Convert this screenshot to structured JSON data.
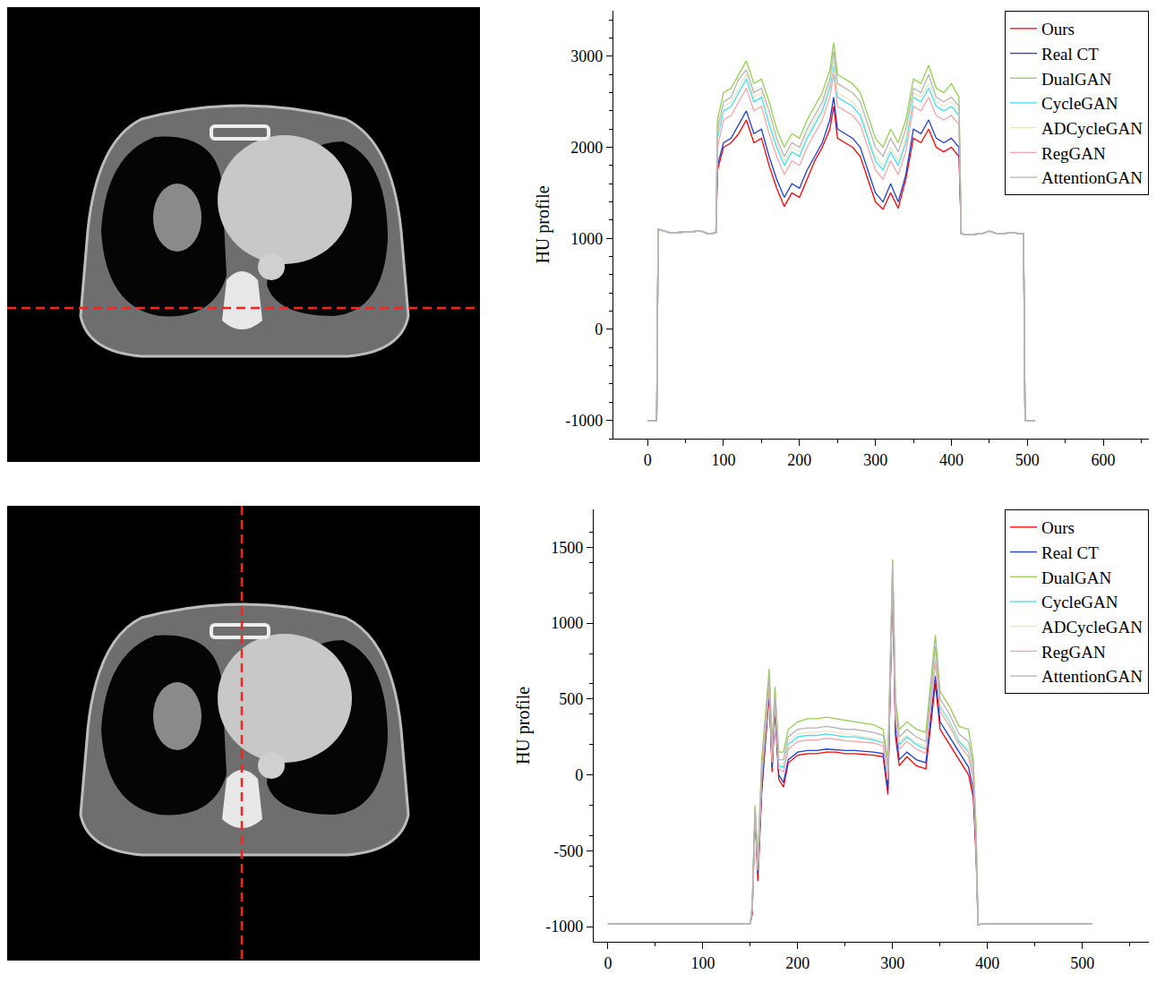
{
  "chart_data": [
    {
      "type": "line",
      "y_label": "HU profile",
      "legend": "upper right",
      "grid": false,
      "xlim": [
        -45,
        660
      ],
      "ylim": [
        -1200,
        3500
      ],
      "xticks": [
        0,
        100,
        200,
        300,
        400,
        500,
        600
      ],
      "yticks": [
        -1000,
        0,
        1000,
        2000,
        3000
      ],
      "x": [
        0,
        12,
        14,
        30,
        50,
        70,
        80,
        90,
        92,
        100,
        110,
        120,
        130,
        140,
        150,
        160,
        170,
        180,
        190,
        200,
        210,
        220,
        230,
        240,
        245,
        250,
        260,
        270,
        280,
        290,
        300,
        310,
        320,
        330,
        340,
        350,
        360,
        370,
        380,
        390,
        400,
        410,
        413,
        420,
        440,
        450,
        460,
        480,
        495,
        497,
        510
      ],
      "series": [
        {
          "name": "Ours",
          "color": "#ff0000",
          "values": [
            -1000,
            -1000,
            1100,
            1060,
            1070,
            1080,
            1050,
            1060,
            1750,
            2000,
            2050,
            2150,
            2300,
            2050,
            2100,
            1800,
            1550,
            1350,
            1500,
            1450,
            1650,
            1850,
            2000,
            2200,
            2450,
            2100,
            2050,
            2000,
            1900,
            1650,
            1400,
            1320,
            1500,
            1330,
            1650,
            2100,
            2050,
            2200,
            2000,
            1950,
            2000,
            1900,
            1050,
            1040,
            1050,
            1080,
            1050,
            1060,
            1050,
            -1000,
            -1000
          ]
        },
        {
          "name": "Real CT",
          "color": "#1f3fd0",
          "values": [
            -1000,
            -1000,
            1100,
            1060,
            1070,
            1080,
            1050,
            1060,
            1800,
            2050,
            2100,
            2250,
            2400,
            2150,
            2200,
            1900,
            1650,
            1450,
            1600,
            1550,
            1750,
            1900,
            2050,
            2300,
            2550,
            2200,
            2150,
            2100,
            2000,
            1750,
            1500,
            1400,
            1600,
            1400,
            1700,
            2200,
            2150,
            2300,
            2100,
            2050,
            2100,
            2000,
            1050,
            1040,
            1050,
            1080,
            1050,
            1060,
            1050,
            -1000,
            -1000
          ]
        },
        {
          "name": "DualGAN",
          "color": "#92d050",
          "values": [
            -1000,
            -1000,
            1100,
            1060,
            1070,
            1080,
            1050,
            1060,
            2300,
            2600,
            2650,
            2800,
            2950,
            2700,
            2750,
            2500,
            2200,
            2000,
            2150,
            2100,
            2300,
            2450,
            2600,
            2850,
            3150,
            2800,
            2750,
            2700,
            2600,
            2350,
            2100,
            2000,
            2200,
            2050,
            2300,
            2750,
            2700,
            2900,
            2650,
            2600,
            2700,
            2550,
            1050,
            1040,
            1050,
            1080,
            1050,
            1060,
            1050,
            -1000,
            -1000
          ]
        },
        {
          "name": "CycleGAN",
          "color": "#3fe0f0",
          "values": [
            -1000,
            -1000,
            1100,
            1060,
            1070,
            1080,
            1050,
            1060,
            2100,
            2400,
            2450,
            2600,
            2750,
            2500,
            2550,
            2250,
            2000,
            1800,
            1950,
            1900,
            2100,
            2250,
            2400,
            2650,
            2900,
            2550,
            2500,
            2450,
            2350,
            2100,
            1850,
            1750,
            1950,
            1800,
            2050,
            2550,
            2500,
            2650,
            2450,
            2400,
            2450,
            2350,
            1050,
            1040,
            1050,
            1080,
            1050,
            1060,
            1050,
            -1000,
            -1000
          ]
        },
        {
          "name": "ADCycleGAN",
          "color": "#eee4c4",
          "values": [
            -1000,
            -1000,
            1100,
            1060,
            1070,
            1080,
            1050,
            1060,
            2150,
            2450,
            2500,
            2650,
            2800,
            2550,
            2600,
            2300,
            2050,
            1850,
            2000,
            1950,
            2150,
            2300,
            2450,
            2700,
            2950,
            2600,
            2550,
            2500,
            2400,
            2150,
            1900,
            1800,
            2000,
            1850,
            2100,
            2600,
            2550,
            2700,
            2500,
            2450,
            2500,
            2400,
            1050,
            1040,
            1050,
            1080,
            1050,
            1060,
            1050,
            -1000,
            -1000
          ]
        },
        {
          "name": "RegGAN",
          "color": "#f2a6a6",
          "values": [
            -1000,
            -1000,
            1100,
            1060,
            1070,
            1080,
            1050,
            1060,
            2000,
            2300,
            2350,
            2500,
            2650,
            2400,
            2450,
            2150,
            1900,
            1700,
            1850,
            1800,
            2000,
            2150,
            2300,
            2550,
            2800,
            2450,
            2400,
            2350,
            2250,
            2000,
            1750,
            1650,
            1850,
            1700,
            1950,
            2450,
            2400,
            2550,
            2350,
            2300,
            2350,
            2250,
            1050,
            1040,
            1050,
            1080,
            1050,
            1060,
            1050,
            -1000,
            -1000
          ]
        },
        {
          "name": "AttentionGAN",
          "color": "#b4b4b4",
          "values": [
            -1000,
            -1000,
            1100,
            1060,
            1070,
            1080,
            1050,
            1060,
            2200,
            2500,
            2550,
            2750,
            2850,
            2600,
            2650,
            2400,
            2100,
            1900,
            2050,
            2000,
            2200,
            2350,
            2500,
            2750,
            3050,
            2700,
            2650,
            2600,
            2500,
            2250,
            2000,
            1900,
            2100,
            1950,
            2200,
            2650,
            2600,
            2800,
            2550,
            2500,
            2550,
            2450,
            1050,
            1040,
            1050,
            1080,
            1050,
            1060,
            1050,
            -1000,
            -1000
          ]
        }
      ]
    },
    {
      "type": "line",
      "y_label": "HU profile",
      "legend": "upper right",
      "grid": false,
      "xlim": [
        -15,
        570
      ],
      "ylim": [
        -1100,
        1750
      ],
      "xticks": [
        0,
        100,
        200,
        300,
        400,
        500
      ],
      "yticks": [
        -1000,
        -500,
        0,
        500,
        1000,
        1500
      ],
      "x": [
        0,
        50,
        100,
        150,
        152,
        155,
        158,
        162,
        168,
        170,
        173,
        176,
        180,
        185,
        190,
        200,
        210,
        220,
        230,
        240,
        250,
        260,
        270,
        280,
        290,
        295,
        300,
        303,
        307,
        315,
        325,
        335,
        345,
        350,
        360,
        370,
        380,
        385,
        388,
        390,
        395,
        450,
        510
      ],
      "series": [
        {
          "name": "Ours",
          "color": "#ff0000",
          "values": [
            -980,
            -980,
            -980,
            -980,
            -920,
            -270,
            -700,
            -120,
            380,
            520,
            20,
            430,
            -30,
            -80,
            80,
            130,
            140,
            140,
            150,
            150,
            140,
            140,
            135,
            130,
            120,
            -130,
            1280,
            250,
            60,
            120,
            60,
            40,
            600,
            300,
            200,
            100,
            0,
            -150,
            -550,
            -990,
            -980,
            -980,
            -980
          ]
        },
        {
          "name": "Real CT",
          "color": "#1f3fd0",
          "values": [
            -980,
            -980,
            -980,
            -980,
            -900,
            -250,
            -650,
            -100,
            400,
            550,
            50,
            450,
            0,
            -50,
            100,
            150,
            160,
            160,
            170,
            165,
            160,
            160,
            155,
            150,
            140,
            -100,
            1300,
            300,
            100,
            150,
            100,
            80,
            650,
            350,
            250,
            150,
            50,
            -100,
            -500,
            -990,
            -980,
            -980,
            -980
          ]
        },
        {
          "name": "DualGAN",
          "color": "#92d050",
          "values": [
            -980,
            -980,
            -980,
            -980,
            -850,
            -200,
            -550,
            100,
            550,
            700,
            200,
            580,
            150,
            150,
            300,
            350,
            370,
            370,
            380,
            370,
            360,
            350,
            340,
            330,
            300,
            100,
            1420,
            500,
            300,
            350,
            300,
            280,
            920,
            550,
            450,
            320,
            300,
            100,
            -350,
            -990,
            -980,
            -980,
            -980
          ]
        },
        {
          "name": "CycleGAN",
          "color": "#3fe0f0",
          "values": [
            -980,
            -980,
            -980,
            -980,
            -880,
            -230,
            -620,
            0,
            450,
            600,
            100,
            500,
            60,
            50,
            200,
            250,
            260,
            260,
            270,
            260,
            250,
            250,
            240,
            230,
            210,
            0,
            1380,
            400,
            200,
            250,
            200,
            170,
            780,
            450,
            350,
            220,
            150,
            0,
            -450,
            -990,
            -980,
            -980,
            -980
          ]
        },
        {
          "name": "ADCycleGAN",
          "color": "#eee4c4",
          "values": [
            -980,
            -980,
            -980,
            -980,
            -880,
            -220,
            -600,
            20,
            470,
            620,
            120,
            510,
            80,
            70,
            220,
            270,
            280,
            280,
            290,
            280,
            270,
            260,
            250,
            240,
            220,
            20,
            1390,
            420,
            220,
            260,
            210,
            190,
            800,
            460,
            360,
            230,
            170,
            20,
            -430,
            -990,
            -980,
            -980,
            -980
          ]
        },
        {
          "name": "RegGAN",
          "color": "#f2a6a6",
          "values": [
            -980,
            -980,
            -980,
            -980,
            -890,
            -240,
            -630,
            -30,
            430,
            580,
            80,
            490,
            40,
            20,
            170,
            220,
            230,
            230,
            240,
            235,
            225,
            220,
            215,
            210,
            190,
            -30,
            1350,
            370,
            170,
            220,
            170,
            140,
            740,
            420,
            320,
            200,
            120,
            -30,
            -470,
            -990,
            -980,
            -980,
            -980
          ]
        },
        {
          "name": "AttentionGAN",
          "color": "#b4b4b4",
          "values": [
            -980,
            -980,
            -980,
            -980,
            -870,
            -220,
            -600,
            50,
            500,
            650,
            150,
            540,
            100,
            100,
            250,
            300,
            310,
            310,
            320,
            310,
            300,
            300,
            290,
            280,
            260,
            50,
            1400,
            450,
            250,
            300,
            250,
            220,
            850,
            500,
            400,
            270,
            220,
            50,
            -400,
            -990,
            -980,
            -980,
            -980
          ]
        }
      ]
    }
  ]
}
